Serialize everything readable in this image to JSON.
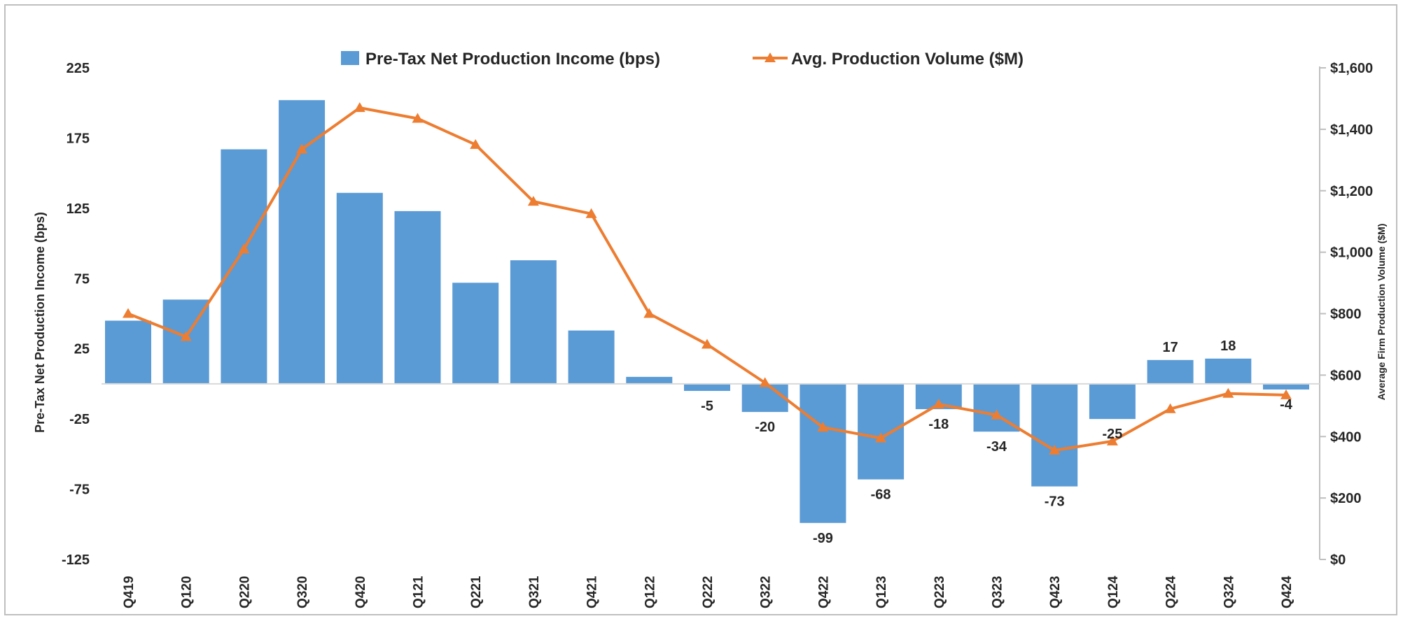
{
  "chart_data": {
    "type": "bar+line",
    "categories": [
      "Q419",
      "Q120",
      "Q220",
      "Q320",
      "Q420",
      "Q121",
      "Q221",
      "Q321",
      "Q421",
      "Q122",
      "Q222",
      "Q322",
      "Q422",
      "Q123",
      "Q223",
      "Q323",
      "Q423",
      "Q124",
      "Q224",
      "Q324",
      "Q424"
    ],
    "series": [
      {
        "name": "Pre-Tax Net Production Income (bps)",
        "type": "bar",
        "axis": "left",
        "color": "#5b9bd5",
        "values": [
          45,
          60,
          167,
          202,
          136,
          123,
          72,
          88,
          38,
          5,
          -5,
          -20,
          -99,
          -68,
          -18,
          -34,
          -73,
          -25,
          17,
          18,
          -4
        ]
      },
      {
        "name": "Avg. Production Volume ($M)",
        "type": "line",
        "axis": "right",
        "color": "#ed7d31",
        "values": [
          800,
          725,
          1010,
          1335,
          1470,
          1435,
          1350,
          1165,
          1125,
          800,
          700,
          575,
          430,
          395,
          505,
          470,
          355,
          385,
          490,
          540,
          535
        ]
      }
    ],
    "data_labels": [
      {
        "index": 10,
        "text": "-5"
      },
      {
        "index": 11,
        "text": "-20"
      },
      {
        "index": 12,
        "text": "-99"
      },
      {
        "index": 13,
        "text": "-68"
      },
      {
        "index": 14,
        "text": "-18"
      },
      {
        "index": 15,
        "text": "-34"
      },
      {
        "index": 16,
        "text": "-73"
      },
      {
        "index": 17,
        "text": "-25"
      },
      {
        "index": 18,
        "text": "17"
      },
      {
        "index": 19,
        "text": "18"
      },
      {
        "index": 20,
        "text": "-4"
      }
    ],
    "ylabel": "Pre-Tax Net Production Income (bps)",
    "y2label": "Average Firm Production Volume ($M)",
    "ylim": [
      -125,
      225
    ],
    "yticks": [
      "225",
      "175",
      "125",
      "75",
      "25",
      "-25",
      "-75",
      "-125"
    ],
    "ytick_values": [
      225,
      175,
      125,
      75,
      25,
      -25,
      -75,
      -125
    ],
    "y2lim": [
      0,
      1600
    ],
    "y2ticks": [
      "$1,600",
      "$1,400",
      "$1,200",
      "$1,000",
      "$800",
      "$600",
      "$400",
      "$200",
      "$0"
    ],
    "y2tick_values": [
      1600,
      1400,
      1200,
      1000,
      800,
      600,
      400,
      200,
      0
    ],
    "legend_position": "top-center",
    "grid": false
  }
}
